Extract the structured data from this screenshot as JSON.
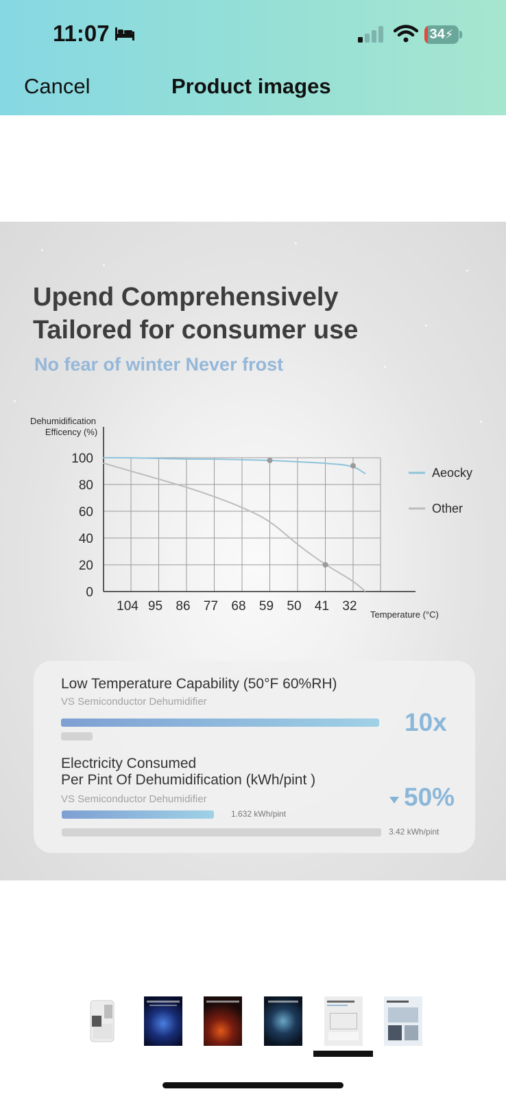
{
  "status_bar": {
    "time": "11:07",
    "battery": "34",
    "icons": [
      "bed-icon",
      "signal-icon",
      "wifi-icon",
      "battery-icon"
    ]
  },
  "nav": {
    "cancel_label": "Cancel",
    "title": "Product images"
  },
  "product_image": {
    "headline_line1": "Upend Comprehensively",
    "headline_line2": "Tailored for consumer use",
    "subheadline": "No fear of winter Never frost"
  },
  "chart_data": {
    "type": "line",
    "ylabel_line1": "Dehumidification",
    "ylabel_line2": "Efficency (%)",
    "xlabel": "Temperature (°C)",
    "x_ticks": [
      "104",
      "95",
      "86",
      "77",
      "68",
      "59",
      "50",
      "41",
      "32"
    ],
    "y_ticks": [
      "100",
      "80",
      "60",
      "40",
      "20",
      "0"
    ],
    "ylim": [
      0,
      100
    ],
    "grid": true,
    "legend_position": "right",
    "series": [
      {
        "name": "Aeocky",
        "color": "#8ec3dc",
        "points": [
          [
            113,
            100
          ],
          [
            104,
            100
          ],
          [
            95,
            99.5
          ],
          [
            86,
            99
          ],
          [
            77,
            99
          ],
          [
            68,
            98.5
          ],
          [
            59,
            98
          ],
          [
            50,
            97
          ],
          [
            41,
            96
          ],
          [
            32,
            94
          ],
          [
            28,
            88
          ]
        ],
        "markers": [
          [
            59,
            98
          ],
          [
            32,
            94
          ]
        ]
      },
      {
        "name": "Other",
        "color": "#bcbcbc",
        "points": [
          [
            113,
            96
          ],
          [
            104,
            90
          ],
          [
            95,
            84
          ],
          [
            86,
            78
          ],
          [
            77,
            71
          ],
          [
            68,
            63
          ],
          [
            59,
            53
          ],
          [
            50,
            35
          ],
          [
            41,
            20
          ],
          [
            32,
            8
          ],
          [
            28,
            0
          ]
        ],
        "markers": [
          [
            41,
            20
          ]
        ]
      }
    ]
  },
  "comparison": {
    "capability_title": "Low Temperature Capability (50°F 60%RH)",
    "capability_sub": "VS Semiconductor Dehumidifier",
    "capability_value": "10x",
    "capability_ratio": 10,
    "electricity_title_line1": "Electricity Consumed",
    "electricity_title_line2": "Per Pint Of Dehumidification (kWh/pint )",
    "electricity_sub": "VS Semiconductor Dehumidifier",
    "electricity_value": "50%",
    "aeocky_kwh": "1.632 kWh/pint",
    "other_kwh": "3.42 kWh/pint",
    "aeocky_kwh_number": 1.632,
    "other_kwh_number": 3.42
  },
  "thumbnails": {
    "count": 6,
    "selected_index": 4
  }
}
